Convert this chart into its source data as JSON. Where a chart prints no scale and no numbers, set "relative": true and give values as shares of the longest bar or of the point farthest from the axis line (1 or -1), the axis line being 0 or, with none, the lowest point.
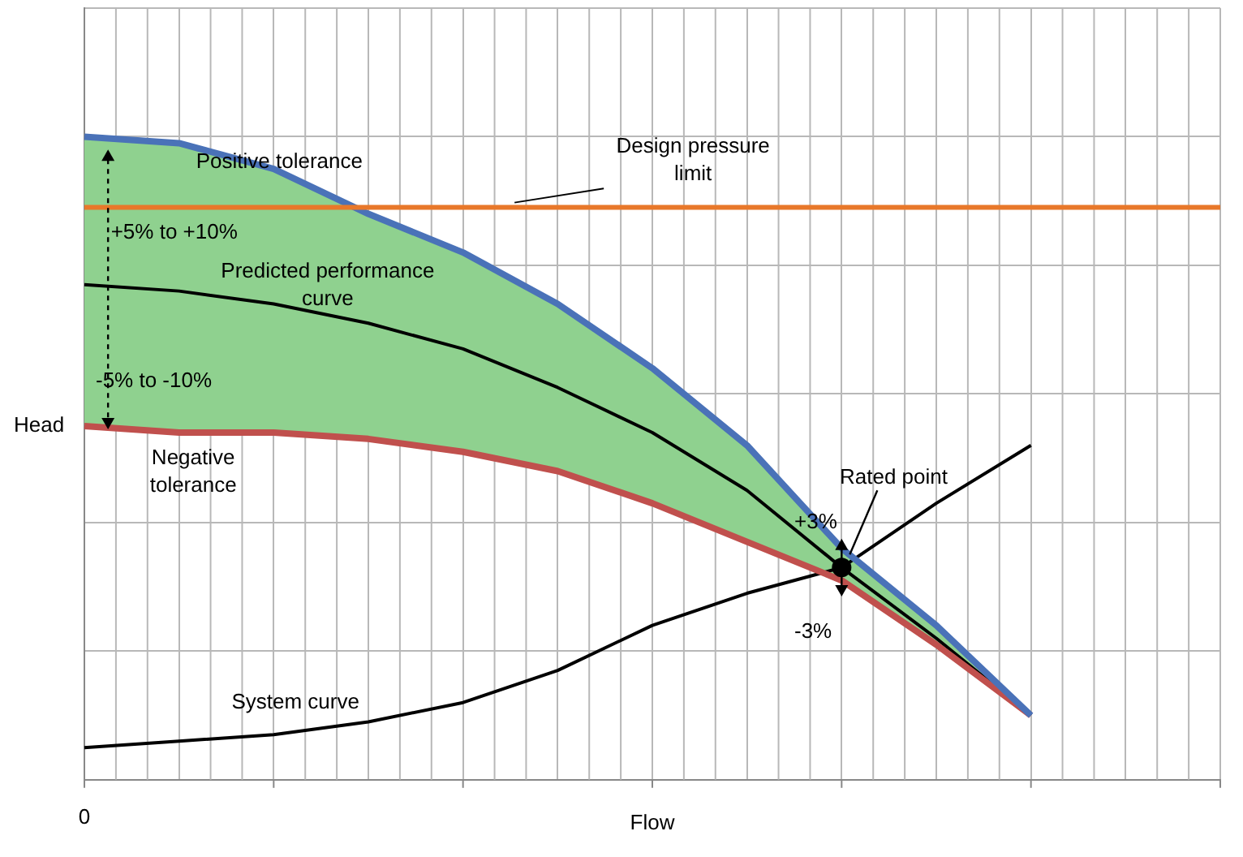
{
  "chart_data": {
    "type": "line",
    "relative": true,
    "xlabel": "Flow",
    "ylabel": "Head",
    "grid": true,
    "legend": false,
    "marker": "none",
    "categories": [
      null,
      null,
      null,
      null,
      null,
      null,
      null,
      null,
      null,
      null,
      null,
      null,
      null
    ],
    "series": [
      {
        "name": "Positive tolerance",
        "color": "#4a72b8",
        "values": [
          1.0,
          0.99,
          0.95,
          0.88,
          0.82,
          0.74,
          0.64,
          0.52,
          0.36,
          0.24,
          0.1,
          null,
          null
        ]
      },
      {
        "name": "Negative tolerance",
        "color": "#c0504d",
        "values": [
          0.55,
          0.54,
          0.54,
          0.53,
          0.51,
          0.48,
          0.43,
          0.37,
          0.31,
          0.21,
          0.1,
          null,
          null
        ]
      },
      {
        "name": "Predicted performance curve",
        "color": "#000000",
        "values": [
          0.77,
          0.76,
          0.74,
          0.71,
          0.67,
          0.61,
          0.54,
          0.45,
          0.33,
          0.22,
          0.1,
          null,
          null
        ],
        "lower": [
          0.55,
          0.54,
          0.54,
          0.53,
          0.51,
          0.48,
          0.43,
          0.37,
          0.31,
          0.21,
          0.1,
          null,
          null
        ],
        "upper": [
          1.0,
          0.99,
          0.95,
          0.88,
          0.82,
          0.74,
          0.64,
          0.52,
          0.36,
          0.24,
          0.1,
          null,
          null
        ]
      },
      {
        "name": "System curve",
        "color": "#000000",
        "values": [
          0.05,
          0.06,
          0.07,
          0.09,
          0.12,
          0.17,
          0.24,
          0.29,
          0.33,
          0.43,
          0.52,
          null,
          null
        ]
      }
    ],
    "ref_lines": [
      {
        "axis": "y",
        "value": 0.89,
        "label": "Design pressure limit",
        "color": "#e8782a"
      }
    ],
    "annotations": [
      "+5% to +10%",
      "-5% to -10%",
      "Rated point",
      "+3%",
      "-3%",
      "0"
    ]
  }
}
